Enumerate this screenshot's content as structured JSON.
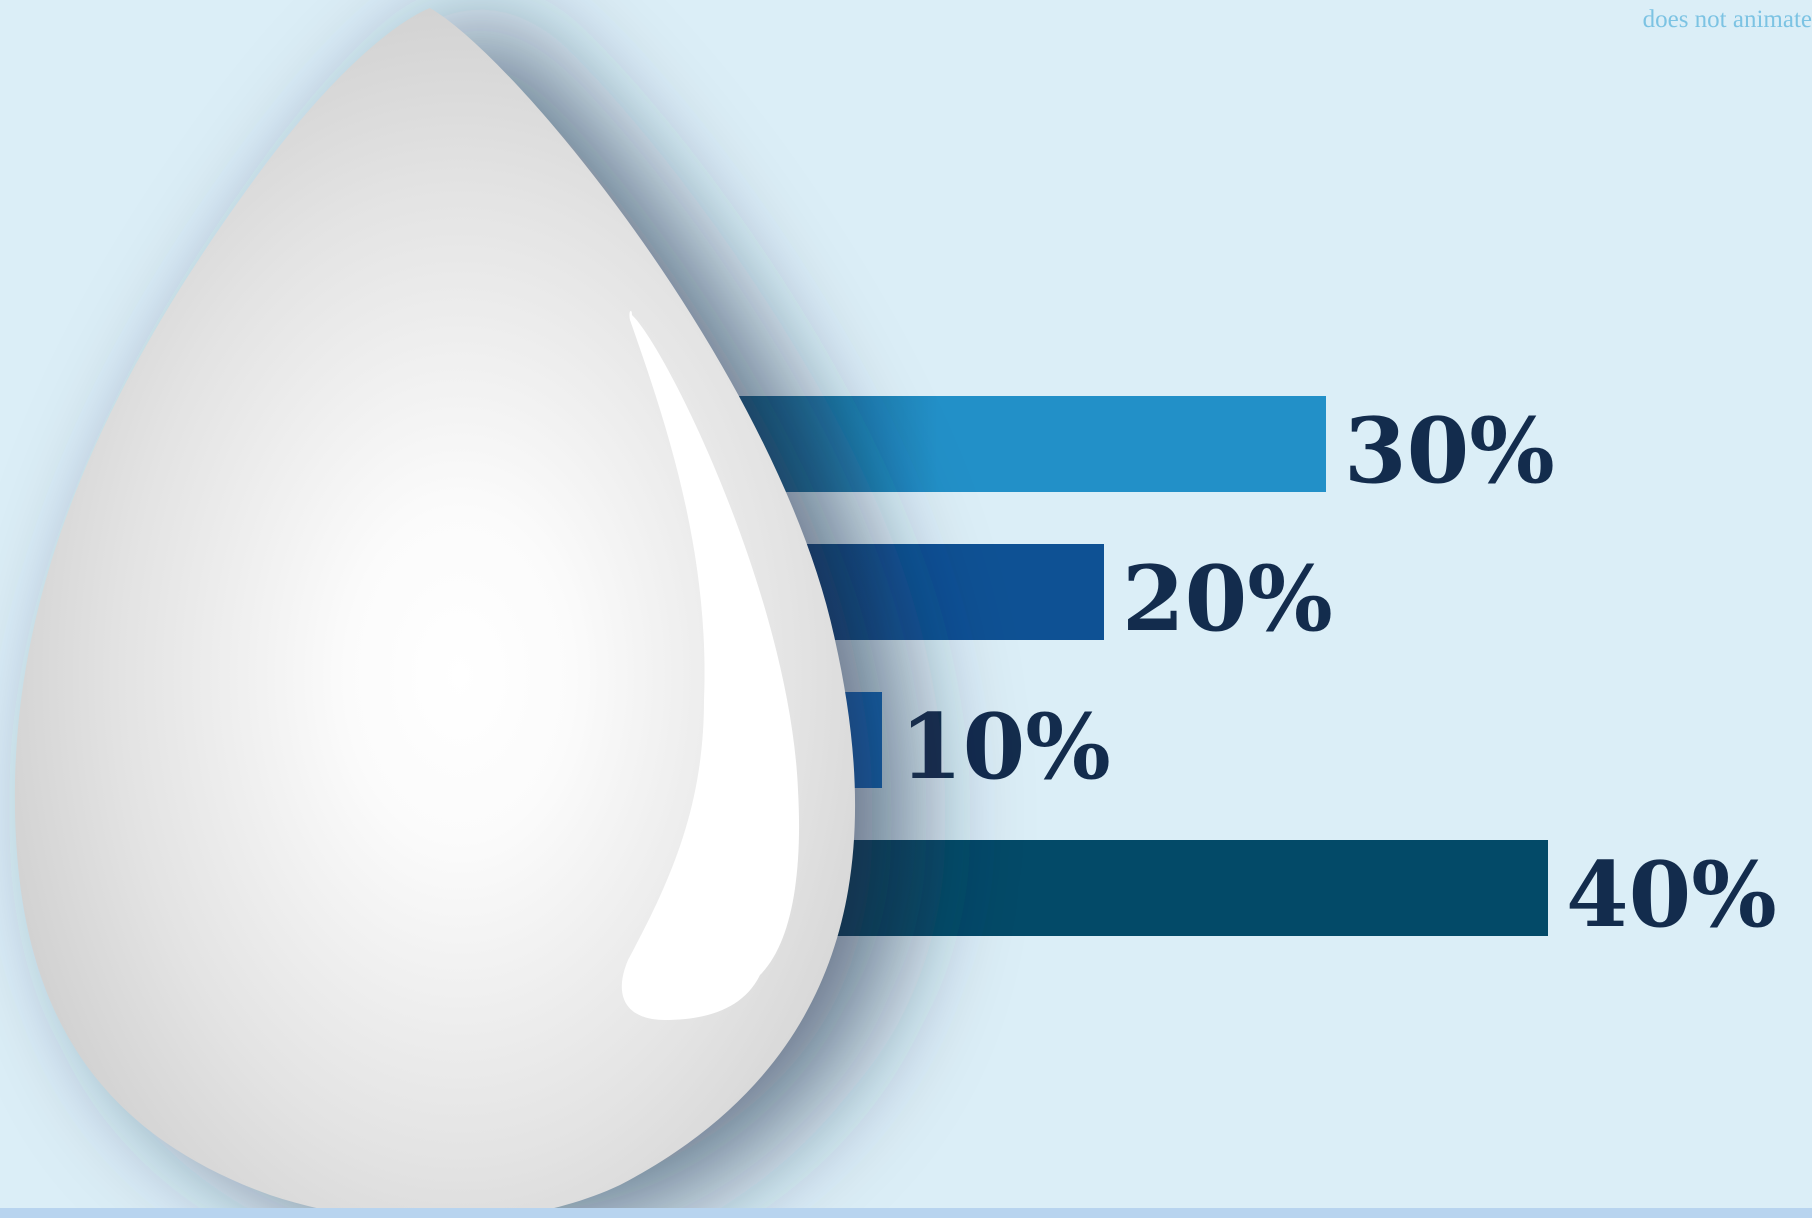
{
  "note": "does not animate",
  "chart_data": {
    "type": "bar",
    "orientation": "horizontal",
    "categories": [
      "",
      "",
      "",
      ""
    ],
    "values": [
      30,
      20,
      10,
      40
    ],
    "labels": [
      "30%",
      "20%",
      "10%",
      "40%"
    ],
    "unit": "%",
    "colors": [
      "#2290c8",
      "#0e5194",
      "#1069bf",
      "#034a68"
    ],
    "label_color": "#132c4d",
    "xlim": [
      0,
      40
    ],
    "title": "",
    "xlabel": "",
    "ylabel": "",
    "grid": false,
    "legend": "none"
  },
  "drop_icon": "water-drop-icon"
}
